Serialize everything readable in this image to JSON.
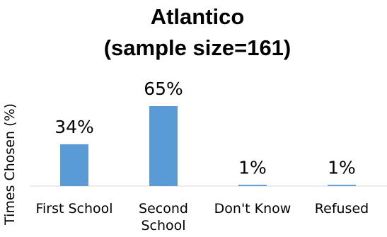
{
  "chart_data": {
    "type": "bar",
    "title": [
      "Atlantico",
      "(sample size=161)"
    ],
    "ylabel": "Times Chosen (%)",
    "xlabel": "",
    "categories": [
      [
        "First School"
      ],
      [
        "Second",
        "School"
      ],
      [
        "Don't Know"
      ],
      [
        "Refused"
      ]
    ],
    "values": [
      34,
      65,
      1,
      1
    ],
    "data_labels": [
      "34%",
      "65%",
      "1%",
      "1%"
    ],
    "ylim": [
      0,
      70
    ],
    "grid": false,
    "legend": "none",
    "bar_color": "#5b9bd5"
  }
}
